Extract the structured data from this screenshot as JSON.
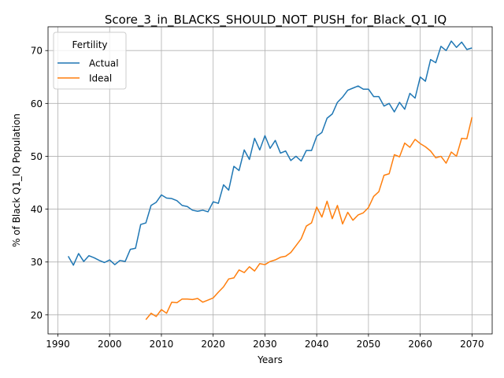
{
  "chart_data": {
    "type": "line",
    "title": "Score_3_in_BLACKS_SHOULD_NOT_PUSH_for_Black_Q1_IQ",
    "xlabel": "Years",
    "ylabel": "% of Black Q1_IQ Population",
    "xlim": [
      1988.1,
      2073.9
    ],
    "ylim": [
      16.4,
      74.5
    ],
    "xticks": [
      1990,
      2000,
      2010,
      2020,
      2030,
      2040,
      2050,
      2060,
      2070
    ],
    "yticks": [
      20,
      30,
      40,
      50,
      60,
      70
    ],
    "grid": true,
    "legend": {
      "title": "Fertility",
      "placement": "top-left"
    },
    "series": [
      {
        "name": "Actual",
        "color": "#1f77b4",
        "x": [
          1992,
          1993,
          1994,
          1995,
          1996,
          1997,
          1998,
          1999,
          2000,
          2001,
          2002,
          2003,
          2004,
          2005,
          2006,
          2007,
          2008,
          2009,
          2010,
          2011,
          2012,
          2013,
          2014,
          2015,
          2016,
          2017,
          2018,
          2019,
          2020,
          2021,
          2022,
          2023,
          2024,
          2025,
          2026,
          2027,
          2028,
          2029,
          2030,
          2031,
          2032,
          2033,
          2034,
          2035,
          2036,
          2037,
          2038,
          2039,
          2040,
          2041,
          2042,
          2043,
          2044,
          2045,
          2046,
          2047,
          2048,
          2049,
          2050,
          2051,
          2052,
          2053,
          2054,
          2055,
          2056,
          2057,
          2058,
          2059,
          2060,
          2061,
          2062,
          2063,
          2064,
          2065,
          2066,
          2067,
          2068,
          2069,
          2070
        ],
        "y": [
          31.1,
          29.4,
          31.6,
          30.1,
          31.2,
          30.8,
          30.3,
          29.9,
          30.4,
          29.5,
          30.3,
          30.1,
          32.4,
          32.6,
          37.1,
          37.4,
          40.7,
          41.3,
          42.7,
          42.1,
          42.0,
          41.6,
          40.7,
          40.5,
          39.8,
          39.6,
          39.8,
          39.5,
          41.4,
          41.1,
          44.6,
          43.6,
          48.1,
          47.3,
          51.2,
          49.4,
          53.4,
          51.2,
          53.9,
          51.5,
          53.0,
          50.6,
          51.0,
          49.2,
          50.0,
          49.1,
          51.1,
          51.1,
          53.8,
          54.5,
          57.2,
          58.0,
          60.2,
          61.2,
          62.5,
          62.9,
          63.3,
          62.7,
          62.7,
          61.3,
          61.3,
          59.5,
          60.0,
          58.4,
          60.2,
          58.9,
          61.9,
          61.0,
          65.0,
          64.2,
          68.3,
          67.7,
          70.8,
          70.0,
          71.8,
          70.6,
          71.6,
          70.2,
          70.5
        ]
      },
      {
        "name": "Ideal",
        "color": "#ff7f0e",
        "x": [
          2007,
          2008,
          2009,
          2010,
          2011,
          2012,
          2013,
          2014,
          2015,
          2016,
          2017,
          2018,
          2019,
          2020,
          2021,
          2022,
          2023,
          2024,
          2025,
          2026,
          2027,
          2028,
          2029,
          2030,
          2031,
          2032,
          2033,
          2034,
          2035,
          2036,
          2037,
          2038,
          2039,
          2040,
          2041,
          2042,
          2043,
          2044,
          2045,
          2046,
          2047,
          2048,
          2049,
          2050,
          2051,
          2052,
          2053,
          2054,
          2055,
          2056,
          2057,
          2058,
          2059,
          2060,
          2061,
          2062,
          2063,
          2064,
          2065,
          2066,
          2067,
          2068,
          2069,
          2070
        ],
        "y": [
          19.1,
          20.3,
          19.7,
          21.0,
          20.3,
          22.4,
          22.3,
          23.0,
          23.0,
          22.9,
          23.1,
          22.4,
          22.8,
          23.2,
          24.3,
          25.3,
          26.8,
          27.0,
          28.5,
          28.0,
          29.1,
          28.3,
          29.7,
          29.5,
          30.1,
          30.4,
          30.9,
          31.1,
          31.8,
          33.1,
          34.4,
          36.8,
          37.4,
          40.4,
          38.5,
          41.5,
          38.2,
          40.7,
          37.2,
          39.4,
          37.9,
          38.9,
          39.3,
          40.3,
          42.4,
          43.3,
          46.4,
          46.7,
          50.3,
          49.9,
          52.5,
          51.7,
          53.2,
          52.4,
          51.8,
          51.0,
          49.7,
          50.0,
          48.7,
          50.8,
          50.0,
          53.4,
          53.3,
          57.4
        ]
      }
    ]
  }
}
